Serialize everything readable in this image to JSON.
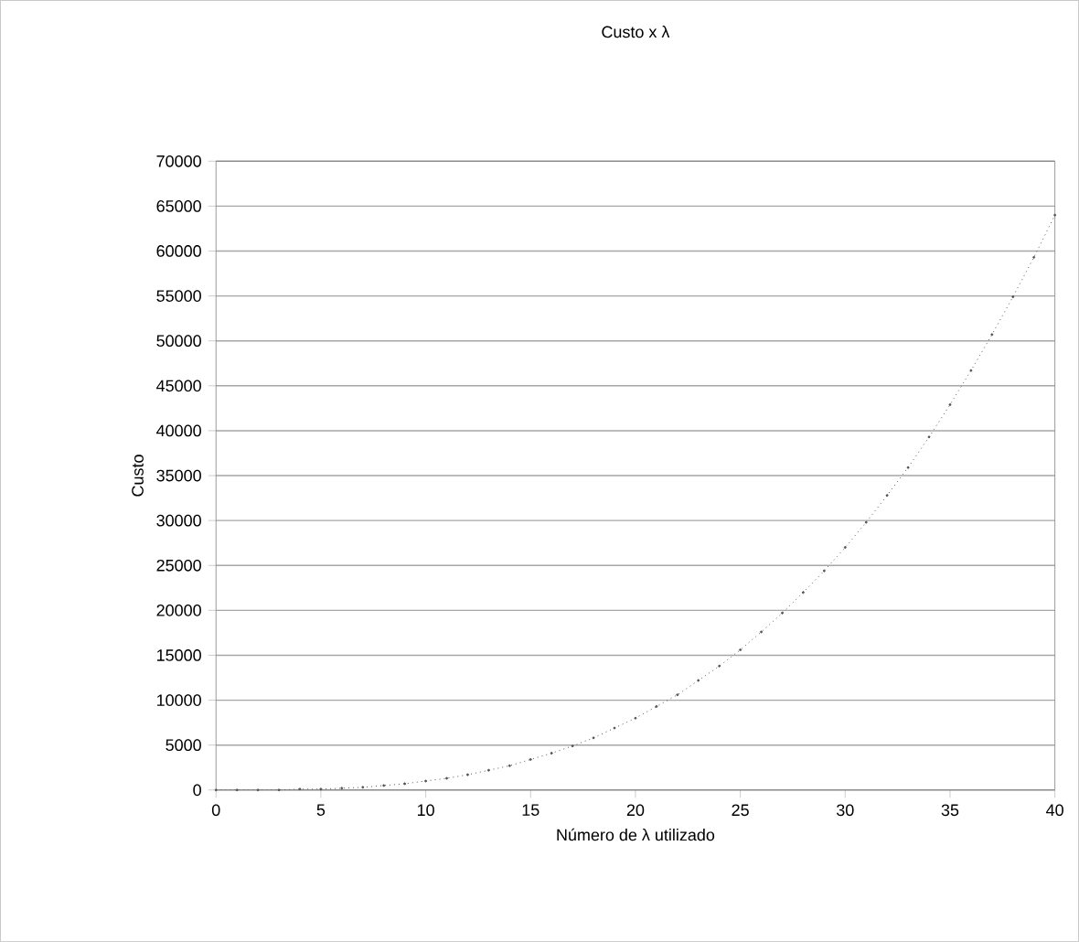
{
  "chart_data": {
    "type": "line",
    "title": "Custo x λ",
    "xlabel": "Número de λ utilizado",
    "ylabel": "Custo",
    "x": [
      0,
      1,
      2,
      3,
      4,
      5,
      6,
      7,
      8,
      9,
      10,
      11,
      12,
      13,
      14,
      15,
      16,
      17,
      18,
      19,
      20,
      21,
      22,
      23,
      24,
      25,
      26,
      27,
      28,
      29,
      30,
      31,
      32,
      33,
      34,
      35,
      36,
      37,
      38,
      39,
      40
    ],
    "series": [
      {
        "color": "#555555",
        "values": [
          0,
          0,
          0,
          0,
          100,
          100,
          200,
          300,
          500,
          700,
          1000,
          1300,
          1700,
          2200,
          2700,
          3400,
          4100,
          4900,
          5800,
          6900,
          8000,
          9300,
          10600,
          12200,
          13800,
          15600,
          17600,
          19700,
          22000,
          24400,
          27000,
          29800,
          32800,
          35900,
          39300,
          42900,
          46700,
          50700,
          54900,
          59300,
          64000
        ]
      }
    ],
    "xlim": [
      0,
      40
    ],
    "ylim": [
      0,
      70000
    ],
    "xticks": [
      0,
      5,
      10,
      15,
      20,
      25,
      30,
      35,
      40
    ],
    "yticks": [
      0,
      5000,
      10000,
      15000,
      20000,
      25000,
      30000,
      35000,
      40000,
      45000,
      50000,
      55000,
      60000,
      65000,
      70000
    ],
    "grid": "y",
    "marker": "circle",
    "line_style": "dotted"
  }
}
